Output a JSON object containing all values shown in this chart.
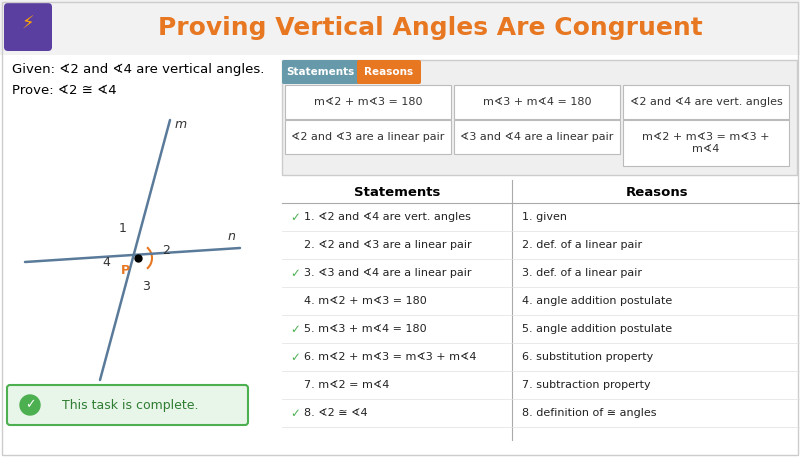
{
  "title": "Proving Vertical Angles Are Congruent",
  "title_color": "#E87722",
  "bg_color": "#FFFFFF",
  "header_bg": "#F2F2F2",
  "given_text": "Given: ∢2 and ∢4 are vertical angles.",
  "prove_text": "Prove: ∢2 ≅ ∢4",
  "tab_statements": "Statements",
  "tab_reasons": "Reasons",
  "tab_stmt_color": "#6699AA",
  "tab_rsn_color": "#E87722",
  "drag_boxes_row1": [
    "m∢2 + m∢3 = 180",
    "m∢3 + m∢4 = 180",
    "∢2 and ∢4 are vert. angles"
  ],
  "drag_boxes_row2": [
    "∢2 and ∢3 are a linear pair",
    "∢3 and ∢4 are a linear pair",
    "m∢2 + m∢3 = m∢3 +\nm∢4"
  ],
  "statements": [
    "1. ∢2 and ∢4 are vert. angles",
    "2. ∢2 and ∢3 are a linear pair",
    "3. ∢3 and ∢4 are a linear pair",
    "4. m∢2 + m∢3 = 180",
    "5. m∢3 + m∢4 = 180",
    "6. m∢2 + m∢3 = m∢3 + m∢4",
    "7. m∢2 = m∢4",
    "8. ∢2 ≅ ∢4"
  ],
  "reasons": [
    "1. given",
    "2. def. of a linear pair",
    "3. def. of a linear pair",
    "4. angle addition postulate",
    "5. angle addition postulate",
    "6. substitution property",
    "7. subtraction property",
    "8. definition of ≅ angles"
  ],
  "checkmarks": [
    1,
    3,
    5,
    6,
    8
  ],
  "complete_text": "This task is complete."
}
